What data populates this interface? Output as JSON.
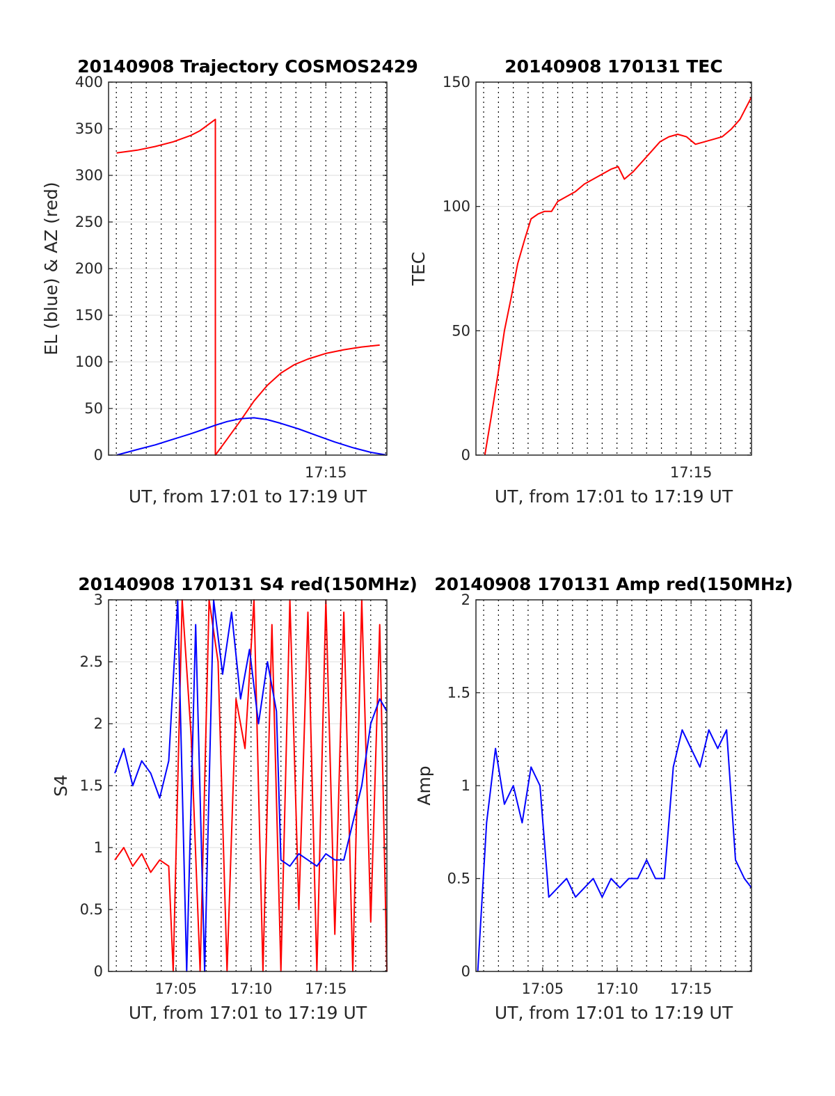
{
  "chart_data": [
    {
      "type": "line",
      "title": "20140908 Trajectory COSMOS2429",
      "xlabel": "UT, from 17:01 to 17:19 UT",
      "ylabel": "EL (blue) & AZ (red)",
      "xlim": [
        17.008,
        17.318
      ],
      "ylim": [
        0,
        400
      ],
      "x_ticks": [
        {
          "value": 17.25,
          "label": "17:15"
        }
      ],
      "y_ticks": [
        0,
        50,
        100,
        150,
        200,
        250,
        300,
        350,
        400
      ],
      "grid": {
        "x": "dotted",
        "y": "solid"
      },
      "series": [
        {
          "color": "#ff0000",
          "x": [
            17.017,
            17.04,
            17.06,
            17.08,
            17.1,
            17.11,
            17.127,
            17.127,
            17.14,
            17.155,
            17.17,
            17.185,
            17.2,
            17.215,
            17.23,
            17.25,
            17.27,
            17.29,
            17.31
          ],
          "y": [
            324,
            327,
            331,
            336,
            343,
            348,
            360,
            0,
            17,
            37,
            58,
            75,
            88,
            97,
            103,
            109,
            113,
            116,
            118
          ]
        },
        {
          "color": "#0000ff",
          "x": [
            17.017,
            17.04,
            17.06,
            17.08,
            17.1,
            17.115,
            17.127,
            17.14,
            17.155,
            17.17,
            17.185,
            17.2,
            17.22,
            17.24,
            17.26,
            17.28,
            17.3,
            17.318
          ],
          "y": [
            0,
            6,
            11,
            17,
            23,
            28,
            32,
            36,
            39,
            40,
            38,
            34,
            28,
            21,
            14,
            8,
            3,
            0
          ]
        }
      ]
    },
    {
      "type": "line",
      "title": "20140908 170131 TEC",
      "xlabel": "UT, from 17:01 to 17:19 UT",
      "ylabel": "TEC",
      "xlim": [
        17.008,
        17.318
      ],
      "ylim": [
        0,
        150
      ],
      "x_ticks": [
        {
          "value": 17.25,
          "label": "17:15"
        }
      ],
      "y_ticks": [
        0,
        50,
        100,
        150
      ],
      "grid": {
        "x": "dotted",
        "y": "solid"
      },
      "series": [
        {
          "color": "#ff0000",
          "x": [
            17.018,
            17.025,
            17.033,
            17.04,
            17.048,
            17.055,
            17.063,
            17.07,
            17.078,
            17.085,
            17.093,
            17.1,
            17.11,
            17.12,
            17.13,
            17.14,
            17.15,
            17.16,
            17.168,
            17.175,
            17.185,
            17.195,
            17.205,
            17.215,
            17.225,
            17.235,
            17.245,
            17.255,
            17.265,
            17.275,
            17.285,
            17.295,
            17.305,
            17.318
          ],
          "y": [
            0,
            15,
            33,
            50,
            64,
            77,
            87,
            95,
            97,
            98,
            98,
            102,
            104,
            106,
            109,
            111,
            113,
            115,
            116,
            111,
            114,
            118,
            122,
            126,
            128,
            129,
            128,
            125,
            126,
            127,
            128,
            131,
            135,
            144
          ]
        }
      ]
    },
    {
      "type": "line",
      "title": "20140908 170131 S4 red(150MHz)",
      "xlabel": "UT, from 17:01 to 17:19 UT",
      "ylabel": "S4",
      "xlim": [
        17.008,
        17.318
      ],
      "ylim": [
        0,
        3
      ],
      "x_ticks": [
        {
          "value": 17.083,
          "label": "17:05"
        },
        {
          "value": 17.167,
          "label": "17:10"
        },
        {
          "value": 17.25,
          "label": "17:15"
        }
      ],
      "y_ticks": [
        0,
        0.5,
        1,
        1.5,
        2,
        2.5,
        3
      ],
      "grid": {
        "x": "dotted",
        "y": "solid"
      },
      "series": [
        {
          "color": "#ff0000",
          "x": [
            17.015,
            17.025,
            17.035,
            17.045,
            17.055,
            17.065,
            17.075,
            17.08,
            17.09,
            17.1,
            17.11,
            17.12,
            17.13,
            17.14,
            17.15,
            17.16,
            17.17,
            17.18,
            17.19,
            17.2,
            17.21,
            17.22,
            17.23,
            17.24,
            17.25,
            17.26,
            17.27,
            17.28,
            17.29,
            17.3,
            17.31,
            17.318
          ],
          "y": [
            0.9,
            1.0,
            0.85,
            0.95,
            0.8,
            0.9,
            0.85,
            0.0,
            3.0,
            1.9,
            0.0,
            3.0,
            2.5,
            0.0,
            2.2,
            1.8,
            3.0,
            0.0,
            2.8,
            0.0,
            3.0,
            0.5,
            2.9,
            0.0,
            3.0,
            0.3,
            2.9,
            0.0,
            3.0,
            0.4,
            2.8,
            0.0
          ]
        },
        {
          "color": "#0000ff",
          "x": [
            17.015,
            17.025,
            17.035,
            17.045,
            17.055,
            17.065,
            17.075,
            17.085,
            17.095,
            17.105,
            17.115,
            17.125,
            17.135,
            17.145,
            17.155,
            17.165,
            17.175,
            17.185,
            17.195,
            17.2,
            17.21,
            17.22,
            17.23,
            17.24,
            17.25,
            17.26,
            17.27,
            17.28,
            17.29,
            17.3,
            17.31,
            17.318
          ],
          "y": [
            1.6,
            1.8,
            1.5,
            1.7,
            1.6,
            1.4,
            1.7,
            3.0,
            0.0,
            2.8,
            0.0,
            3.0,
            2.4,
            2.9,
            2.2,
            2.6,
            2.0,
            2.5,
            2.1,
            0.9,
            0.85,
            0.95,
            0.9,
            0.85,
            0.95,
            0.9,
            0.9,
            1.2,
            1.5,
            2.0,
            2.2,
            2.1
          ]
        }
      ]
    },
    {
      "type": "line",
      "title": "20140908 170131 Amp red(150MHz)",
      "xlabel": "UT, from 17:01 to 17:19 UT",
      "ylabel": "Amp",
      "xlim": [
        17.008,
        17.318
      ],
      "ylim": [
        0,
        2
      ],
      "x_ticks": [
        {
          "value": 17.083,
          "label": "17:05"
        },
        {
          "value": 17.167,
          "label": "17:10"
        },
        {
          "value": 17.25,
          "label": "17:15"
        }
      ],
      "y_ticks": [
        0,
        0.5,
        1,
        1.5,
        2
      ],
      "grid": {
        "x": "dotted",
        "y": "solid"
      },
      "series": [
        {
          "color": "#0000ff",
          "x": [
            17.01,
            17.02,
            17.03,
            17.04,
            17.05,
            17.06,
            17.07,
            17.08,
            17.09,
            17.1,
            17.11,
            17.12,
            17.13,
            17.14,
            17.15,
            17.16,
            17.17,
            17.18,
            17.19,
            17.2,
            17.21,
            17.22,
            17.23,
            17.24,
            17.25,
            17.26,
            17.27,
            17.28,
            17.29,
            17.3,
            17.31,
            17.318
          ],
          "y": [
            0.0,
            0.8,
            1.2,
            0.9,
            1.0,
            0.8,
            1.1,
            1.0,
            0.4,
            0.45,
            0.5,
            0.4,
            0.45,
            0.5,
            0.4,
            0.5,
            0.45,
            0.5,
            0.5,
            0.6,
            0.5,
            0.5,
            1.1,
            1.3,
            1.2,
            1.1,
            1.3,
            1.2,
            1.3,
            0.6,
            0.5,
            0.45
          ]
        }
      ]
    }
  ]
}
